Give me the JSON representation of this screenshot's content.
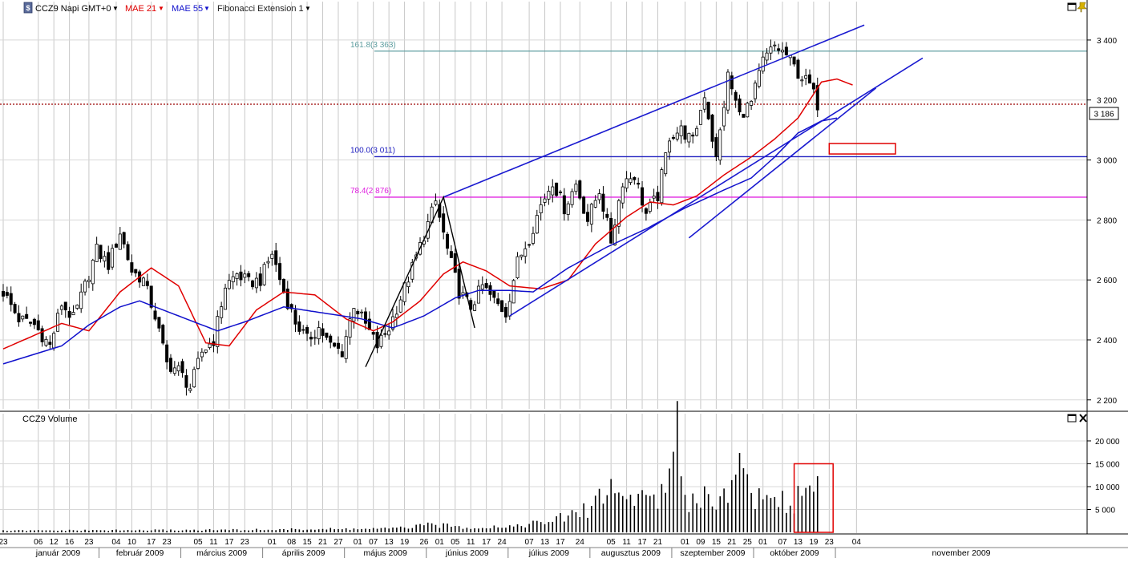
{
  "toolbar": {
    "symbol_icon": "chart-symbol-icon",
    "symbol": "CCZ9 Napi GMT+0",
    "indicators": [
      {
        "label": "MAE 21",
        "color": "#e00000"
      },
      {
        "label": "MAE 55",
        "color": "#1010cc"
      },
      {
        "label": "Fibonacci Extension 1",
        "color": "#222222"
      }
    ]
  },
  "volume_panel": {
    "title": "CCZ9 Volume"
  },
  "window_icons": [
    "restore-icon",
    "pin-icon",
    "close-icon"
  ],
  "last_price_label": "3 186",
  "chart_data": [
    {
      "type": "candlestick",
      "title": "CCZ9 Napi GMT+0",
      "ylim": [
        2170,
        3480
      ],
      "y_ticks": [
        "2 200",
        "2 400",
        "2 600",
        "2 800",
        "3 000",
        "3 200",
        "3 400"
      ],
      "y_tick_values": [
        2200,
        2400,
        2600,
        2800,
        3000,
        3200,
        3400
      ],
      "last_price": 3186,
      "grid": true,
      "fibonacci_levels": [
        {
          "label": "161.8(3 363)",
          "value": 3363,
          "color": "#5f9ea0"
        },
        {
          "label": "100.0(3 011)",
          "value": 3011,
          "color": "#2020c0"
        },
        {
          "label": "78.4(2 876)",
          "value": 2876,
          "color": "#e020e0"
        }
      ],
      "series": [
        {
          "name": "MAE 21",
          "color": "#e00000",
          "anchors": [
            [
              0,
              2370
            ],
            [
              15,
              2455
            ],
            [
              22,
              2430
            ],
            [
              30,
              2560
            ],
            [
              38,
              2640
            ],
            [
              45,
              2580
            ],
            [
              52,
              2390
            ],
            [
              58,
              2380
            ],
            [
              65,
              2500
            ],
            [
              72,
              2560
            ],
            [
              80,
              2550
            ],
            [
              88,
              2470
            ],
            [
              95,
              2430
            ],
            [
              100,
              2460
            ],
            [
              107,
              2530
            ],
            [
              113,
              2620
            ],
            [
              118,
              2660
            ],
            [
              124,
              2630
            ],
            [
              130,
              2580
            ],
            [
              138,
              2570
            ],
            [
              145,
              2600
            ],
            [
              152,
              2720
            ],
            [
              160,
              2810
            ],
            [
              166,
              2860
            ],
            [
              172,
              2850
            ],
            [
              178,
              2880
            ],
            [
              185,
              2950
            ],
            [
              192,
              3010
            ],
            [
              198,
              3070
            ],
            [
              204,
              3140
            ],
            [
              210,
              3260
            ],
            [
              214,
              3270
            ],
            [
              218,
              3250
            ]
          ]
        },
        {
          "name": "MAE 55",
          "color": "#1010cc",
          "anchors": [
            [
              0,
              2320
            ],
            [
              15,
              2380
            ],
            [
              22,
              2450
            ],
            [
              30,
              2510
            ],
            [
              35,
              2530
            ],
            [
              45,
              2480
            ],
            [
              55,
              2430
            ],
            [
              62,
              2460
            ],
            [
              72,
              2510
            ],
            [
              82,
              2490
            ],
            [
              92,
              2470
            ],
            [
              100,
              2440
            ],
            [
              108,
              2480
            ],
            [
              116,
              2540
            ],
            [
              122,
              2565
            ],
            [
              130,
              2565
            ],
            [
              136,
              2560
            ],
            [
              145,
              2640
            ],
            [
              155,
              2710
            ],
            [
              165,
              2770
            ],
            [
              175,
              2840
            ],
            [
              185,
              2900
            ],
            [
              192,
              2940
            ],
            [
              198,
              3010
            ],
            [
              204,
              3090
            ],
            [
              210,
              3130
            ],
            [
              214,
              3140
            ]
          ]
        }
      ],
      "candle_anchors": [
        [
          0,
          2560
        ],
        [
          4,
          2470
        ],
        [
          8,
          2450
        ],
        [
          12,
          2380
        ],
        [
          15,
          2520
        ],
        [
          18,
          2470
        ],
        [
          21,
          2580
        ],
        [
          24,
          2700
        ],
        [
          27,
          2650
        ],
        [
          30,
          2760
        ],
        [
          33,
          2630
        ],
        [
          36,
          2600
        ],
        [
          39,
          2480
        ],
        [
          42,
          2320
        ],
        [
          45,
          2300
        ],
        [
          48,
          2240
        ],
        [
          51,
          2360
        ],
        [
          54,
          2400
        ],
        [
          57,
          2580
        ],
        [
          60,
          2620
        ],
        [
          63,
          2590
        ],
        [
          66,
          2600
        ],
        [
          69,
          2690
        ],
        [
          72,
          2560
        ],
        [
          75,
          2460
        ],
        [
          78,
          2400
        ],
        [
          81,
          2440
        ],
        [
          84,
          2380
        ],
        [
          87,
          2360
        ],
        [
          90,
          2520
        ],
        [
          93,
          2450
        ],
        [
          96,
          2380
        ],
        [
          99,
          2440
        ],
        [
          102,
          2540
        ],
        [
          105,
          2640
        ],
        [
          108,
          2750
        ],
        [
          111,
          2860
        ],
        [
          114,
          2700
        ],
        [
          117,
          2560
        ],
        [
          120,
          2510
        ],
        [
          123,
          2580
        ],
        [
          126,
          2530
        ],
        [
          129,
          2490
        ],
        [
          132,
          2660
        ],
        [
          135,
          2740
        ],
        [
          138,
          2850
        ],
        [
          141,
          2930
        ],
        [
          144,
          2840
        ],
        [
          147,
          2920
        ],
        [
          150,
          2800
        ],
        [
          153,
          2900
        ],
        [
          156,
          2730
        ],
        [
          159,
          2930
        ],
        [
          162,
          2950
        ],
        [
          165,
          2820
        ],
        [
          168,
          2880
        ],
        [
          171,
          3080
        ],
        [
          174,
          3100
        ],
        [
          177,
          3060
        ],
        [
          180,
          3220
        ],
        [
          183,
          3000
        ],
        [
          186,
          3280
        ],
        [
          189,
          3150
        ],
        [
          192,
          3190
        ],
        [
          195,
          3330
        ],
        [
          198,
          3380
        ],
        [
          201,
          3350
        ],
        [
          204,
          3290
        ],
        [
          207,
          3250
        ],
        [
          209,
          3186
        ]
      ],
      "trend_lines": [
        {
          "name": "upper-channel",
          "from": [
            113,
            2876
          ],
          "to": [
            221,
            3450
          ]
        },
        {
          "name": "mid-channel",
          "from": [
            130,
            2480
          ],
          "to": [
            236,
            3340
          ]
        },
        {
          "name": "lower-channel",
          "from": [
            176,
            2740
          ],
          "to": [
            224,
            3240
          ]
        },
        {
          "name": "fib-wave",
          "points": [
            [
              93,
              2310
            ],
            [
              113,
              2876
            ],
            [
              121,
              2440
            ]
          ]
        }
      ],
      "annotation_box": {
        "x0": 212,
        "x1": 229,
        "y0": 3020,
        "y1": 3055,
        "color": "#e00000"
      }
    },
    {
      "type": "bar",
      "title": "CCZ9 Volume",
      "ylim": [
        0,
        23500
      ],
      "y_ticks": [
        "20 000",
        "15 000",
        "10 000",
        "5 000"
      ],
      "y_tick_values": [
        20000,
        15000,
        10000,
        5000
      ],
      "grid": true,
      "anchors": [
        [
          0,
          400
        ],
        [
          60,
          600
        ],
        [
          100,
          900
        ],
        [
          110,
          1800
        ],
        [
          120,
          1200
        ],
        [
          130,
          1500
        ],
        [
          140,
          2500
        ],
        [
          150,
          5500
        ],
        [
          155,
          11000
        ],
        [
          160,
          8000
        ],
        [
          165,
          9500
        ],
        [
          170,
          8500
        ],
        [
          173,
          23000
        ],
        [
          176,
          8000
        ],
        [
          180,
          9000
        ],
        [
          185,
          8500
        ],
        [
          188,
          18000
        ],
        [
          192,
          9000
        ],
        [
          196,
          8500
        ],
        [
          200,
          8000
        ],
        [
          203,
          7000
        ],
        [
          206,
          10500
        ],
        [
          209,
          12000
        ],
        [
          211,
          11500
        ]
      ],
      "annotation_box": {
        "x0": 203,
        "x1": 213,
        "y0": 0,
        "y1": 15000,
        "color": "#e00000"
      }
    }
  ],
  "x_axis": {
    "day_ticks": [
      {
        "label": "23",
        "i": 0
      },
      {
        "label": "06",
        "i": 9
      },
      {
        "label": "12",
        "i": 13
      },
      {
        "label": "16",
        "i": 17
      },
      {
        "label": "23",
        "i": 22
      },
      {
        "label": "04",
        "i": 29
      },
      {
        "label": "10",
        "i": 33
      },
      {
        "label": "17",
        "i": 38
      },
      {
        "label": "23",
        "i": 42
      },
      {
        "label": "05",
        "i": 50
      },
      {
        "label": "11",
        "i": 54
      },
      {
        "label": "17",
        "i": 58
      },
      {
        "label": "23",
        "i": 62
      },
      {
        "label": "01",
        "i": 69
      },
      {
        "label": "08",
        "i": 74
      },
      {
        "label": "15",
        "i": 78
      },
      {
        "label": "21",
        "i": 82
      },
      {
        "label": "27",
        "i": 86
      },
      {
        "label": "01",
        "i": 91
      },
      {
        "label": "07",
        "i": 95
      },
      {
        "label": "13",
        "i": 99
      },
      {
        "label": "19",
        "i": 103
      },
      {
        "label": "26",
        "i": 108
      },
      {
        "label": "01",
        "i": 112
      },
      {
        "label": "05",
        "i": 116
      },
      {
        "label": "11",
        "i": 120
      },
      {
        "label": "17",
        "i": 124
      },
      {
        "label": "24",
        "i": 128
      },
      {
        "label": "07",
        "i": 135
      },
      {
        "label": "13",
        "i": 139
      },
      {
        "label": "17",
        "i": 143
      },
      {
        "label": "24",
        "i": 148
      },
      {
        "label": "05",
        "i": 156
      },
      {
        "label": "11",
        "i": 160
      },
      {
        "label": "17",
        "i": 164
      },
      {
        "label": "21",
        "i": 168
      },
      {
        "label": "01",
        "i": 175
      },
      {
        "label": "09",
        "i": 179
      },
      {
        "label": "15",
        "i": 183
      },
      {
        "label": "21",
        "i": 187
      },
      {
        "label": "25",
        "i": 191
      },
      {
        "label": "01",
        "i": 195
      },
      {
        "label": "07",
        "i": 200
      },
      {
        "label": "13",
        "i": 204
      },
      {
        "label": "19",
        "i": 208
      },
      {
        "label": "23",
        "i": 212
      },
      {
        "label": "04",
        "i": 219
      }
    ],
    "months": [
      {
        "label": "január 2009",
        "from": 4,
        "to": 25
      },
      {
        "label": "február 2009",
        "from": 25,
        "to": 46
      },
      {
        "label": "március 2009",
        "from": 46,
        "to": 67
      },
      {
        "label": "április 2009",
        "from": 67,
        "to": 88
      },
      {
        "label": "május 2009",
        "from": 88,
        "to": 109
      },
      {
        "label": "június 2009",
        "from": 109,
        "to": 130
      },
      {
        "label": "július 2009",
        "from": 130,
        "to": 151
      },
      {
        "label": "augusztus 2009",
        "from": 151,
        "to": 172
      },
      {
        "label": "szeptember 2009",
        "from": 172,
        "to": 193
      },
      {
        "label": "október 2009",
        "from": 193,
        "to": 214
      },
      {
        "label": "november 2009",
        "from": 214,
        "to": 288
      }
    ]
  }
}
